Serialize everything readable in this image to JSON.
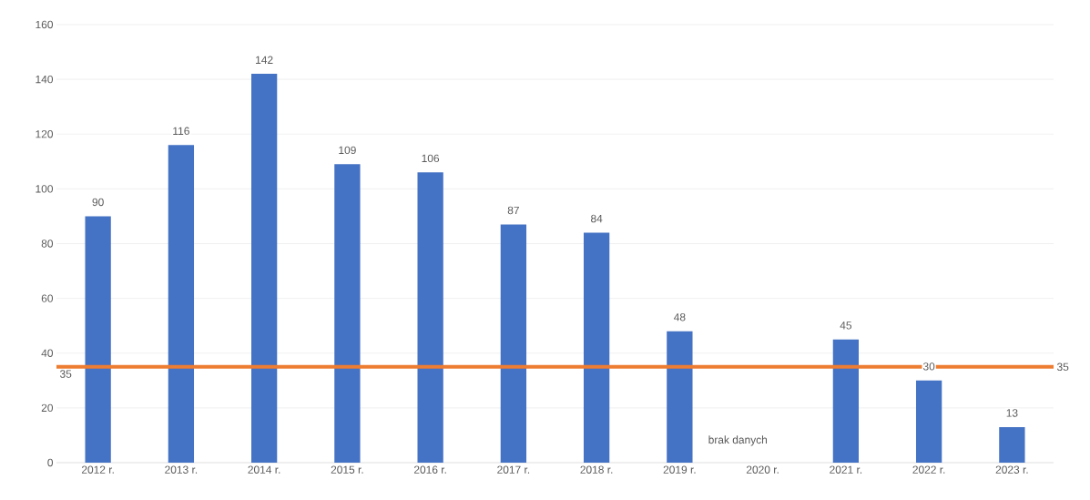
{
  "chart_data": {
    "type": "bar",
    "categories": [
      "2012 r.",
      "2013 r.",
      "2014 r.",
      "2015 r.",
      "2016 r.",
      "2017 r.",
      "2018 r.",
      "2019 r.",
      "2020 r.",
      "2021 r.",
      "2022 r.",
      "2023 r."
    ],
    "values": [
      90,
      116,
      142,
      109,
      106,
      87,
      84,
      48,
      null,
      45,
      30,
      13
    ],
    "color": "#4472c4",
    "data_labels": true,
    "ylim": [
      0,
      160
    ],
    "yticks": [
      0,
      20,
      40,
      60,
      80,
      100,
      120,
      140,
      160
    ],
    "grid": "y",
    "ref_lines": [
      {
        "axis": "y",
        "value": 35,
        "label": "35",
        "color": "#ed7d31"
      }
    ],
    "annotations": [
      "brak danych"
    ]
  }
}
